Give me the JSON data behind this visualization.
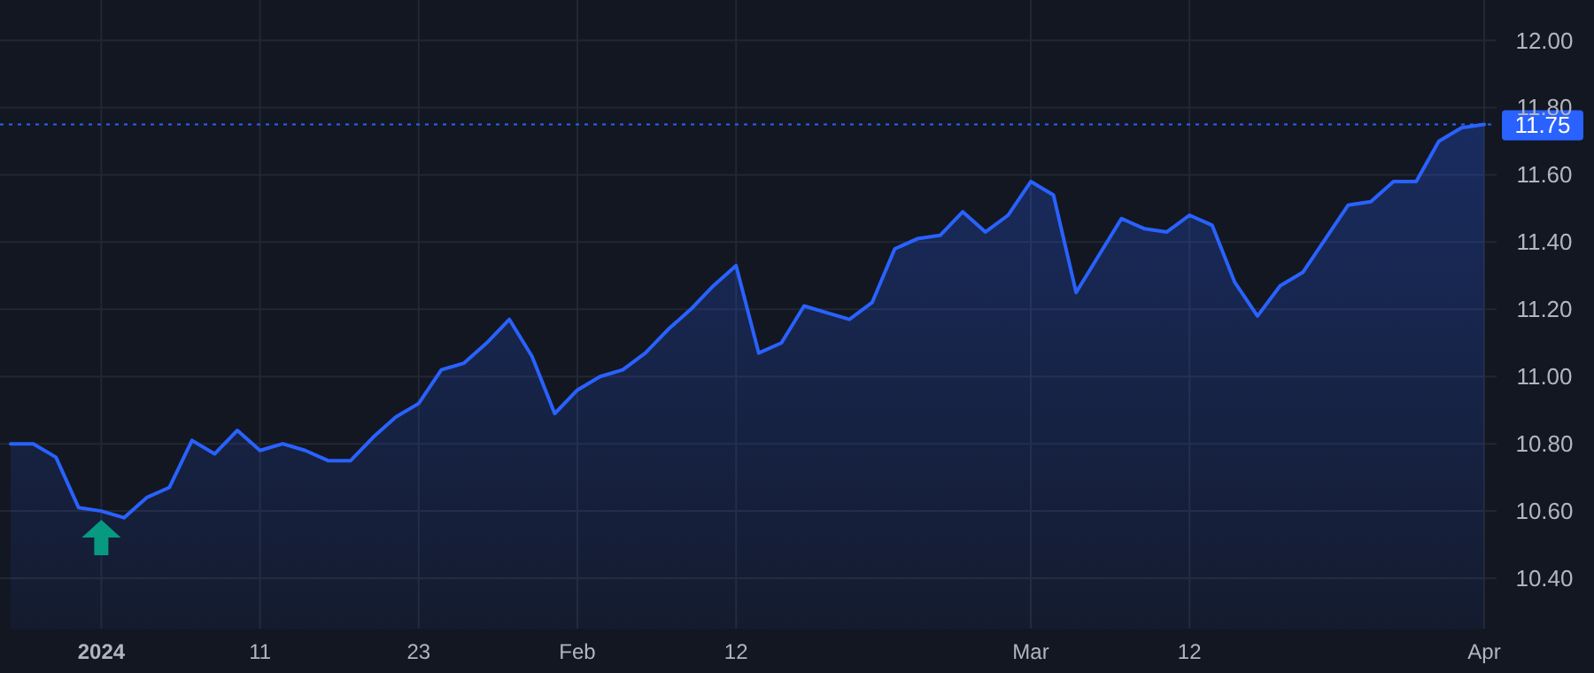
{
  "chart_data": {
    "type": "area",
    "categories": [
      null,
      null,
      null,
      null,
      "2024",
      null,
      null,
      null,
      null,
      null,
      null,
      "11",
      null,
      null,
      null,
      null,
      null,
      null,
      "23",
      null,
      null,
      null,
      null,
      null,
      null,
      "Feb",
      null,
      null,
      null,
      null,
      null,
      null,
      "12",
      null,
      null,
      null,
      null,
      null,
      null,
      null,
      null,
      null,
      null,
      null,
      null,
      "Mar",
      null,
      null,
      null,
      null,
      null,
      null,
      "12",
      null,
      null,
      null,
      null,
      null,
      null,
      null,
      null,
      null,
      null,
      null,
      null,
      "Apr"
    ],
    "series": [
      {
        "color": "#2962ff",
        "values": [
          10.8,
          10.8,
          10.76,
          10.61,
          10.6,
          10.58,
          10.64,
          10.67,
          10.81,
          10.77,
          10.84,
          10.78,
          10.8,
          10.78,
          10.75,
          10.75,
          10.82,
          10.88,
          10.92,
          11.02,
          11.04,
          11.1,
          11.17,
          11.06,
          10.89,
          10.96,
          11.0,
          11.02,
          11.07,
          11.14,
          11.2,
          11.27,
          11.33,
          11.07,
          11.1,
          11.21,
          11.19,
          11.17,
          11.22,
          11.38,
          11.41,
          11.42,
          11.49,
          11.43,
          11.48,
          11.58,
          11.54,
          11.25,
          11.36,
          11.47,
          11.44,
          11.43,
          11.48,
          11.45,
          11.28,
          11.18,
          11.27,
          11.31,
          11.41,
          11.51,
          11.52,
          11.58,
          11.58,
          11.7,
          11.74,
          11.75
        ]
      }
    ],
    "ylim": [
      10.25,
      12.12
    ],
    "yticks": [
      {
        "value": 10.4,
        "label": "10.40"
      },
      {
        "value": 10.6,
        "label": "10.60"
      },
      {
        "value": 10.8,
        "label": "10.80"
      },
      {
        "value": 11.0,
        "label": "11.00"
      },
      {
        "value": 11.2,
        "label": "11.20"
      },
      {
        "value": 11.4,
        "label": "11.40"
      },
      {
        "value": 11.6,
        "label": "11.60"
      },
      {
        "value": 11.8,
        "label": "11.80"
      },
      {
        "value": 12.0,
        "label": "12.00"
      }
    ],
    "grid": true,
    "ref_lines": [
      {
        "axis": "y",
        "value": 11.75,
        "label": "11.75",
        "color": "#2962ff",
        "line_style": "dotted"
      }
    ]
  }
}
